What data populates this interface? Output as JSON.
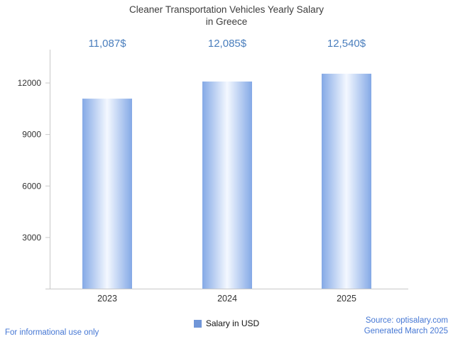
{
  "title": {
    "line1": "Cleaner Transportation Vehicles Yearly Salary",
    "line2": "in Greece"
  },
  "legend": {
    "label": "Salary in USD"
  },
  "footer": {
    "disclaimer": "For informational use only",
    "source": "Source: optisalary.com",
    "generated": "Generated March 2025"
  },
  "colors": {
    "accent_blue": "#4a7ebd",
    "footer_blue": "#4577d4",
    "title_color": "#3d3d3d",
    "axis": "#c9c9c9",
    "tick_text": "#333333",
    "bar_edge": "#84a9e6",
    "bar_center": "#f4f8ff",
    "legend_swatch": "#7096d8"
  },
  "chart_data": {
    "type": "bar",
    "title": "Cleaner Transportation Vehicles Yearly Salary in Greece",
    "categories": [
      "2023",
      "2024",
      "2025"
    ],
    "values": [
      11087,
      12085,
      12540
    ],
    "value_labels": [
      "11,087$",
      "12,085$",
      "12,540$"
    ],
    "series": [
      {
        "name": "Salary in USD",
        "values": [
          11087,
          12085,
          12540
        ]
      }
    ],
    "xlabel": "",
    "ylabel": "",
    "yticks": [
      3000,
      6000,
      9000,
      12000
    ],
    "ylim": [
      0,
      13900
    ],
    "grid": false,
    "legend_position": "bottom"
  }
}
